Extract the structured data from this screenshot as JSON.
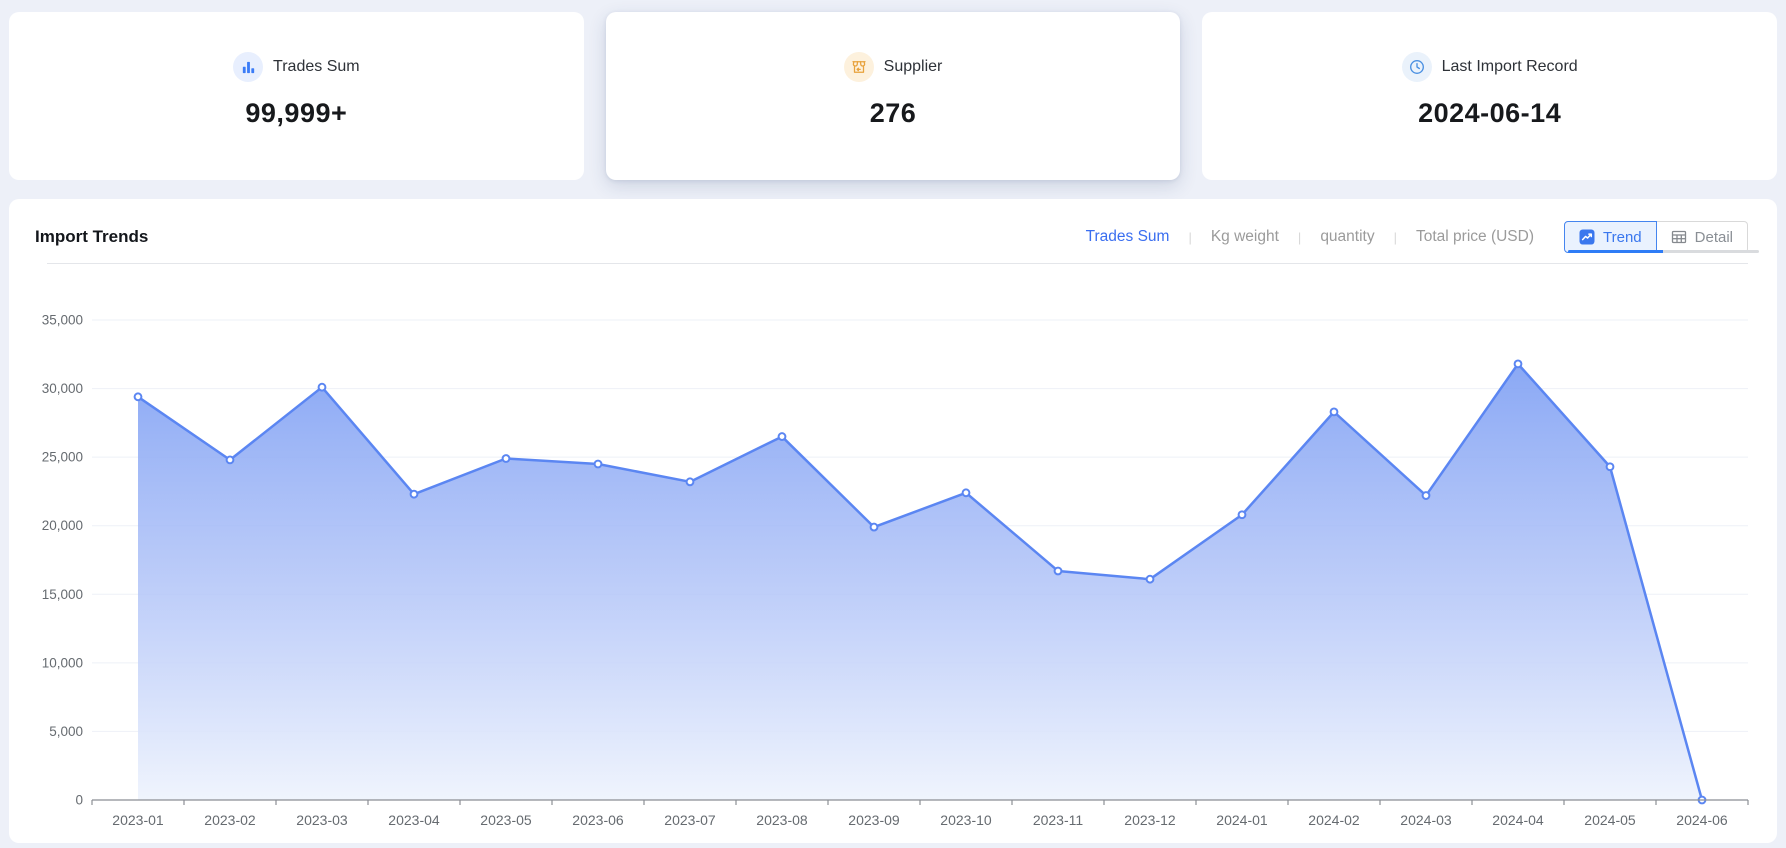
{
  "page": {
    "background": "#edf0f8"
  },
  "stats": [
    {
      "label": "Trades Sum",
      "value": "99,999+",
      "icon": "bar-chart-icon",
      "icon_color": "#3b7cf7",
      "icon_bg": "#e8effe"
    },
    {
      "label": "Supplier",
      "value": "276",
      "icon": "storefront-icon",
      "icon_color": "#e8a23d",
      "icon_bg": "#fdf1dd"
    },
    {
      "label": "Last Import Record",
      "value": "2024-06-14",
      "icon": "clock-icon",
      "icon_color": "#4a90e2",
      "icon_bg": "#eaf2fb"
    }
  ],
  "trends": {
    "title": "Import Trends",
    "metric_tabs": [
      {
        "label": "Trades Sum",
        "active": true
      },
      {
        "label": "Kg weight",
        "active": false
      },
      {
        "label": "quantity",
        "active": false
      },
      {
        "label": "Total price (USD)",
        "active": false
      }
    ],
    "view_toggle": {
      "trend_label": "Trend",
      "detail_label": "Detail",
      "active": "Trend"
    },
    "colors": {
      "tab_active": "#3a6ef0",
      "tab_inactive": "#9b9b9b",
      "button_active_border": "#4585ef",
      "button_active_bg": "#eaf2fe",
      "scrollbar_thumb": "#2e7cf6",
      "scrollbar_track": "#d9dbde"
    }
  },
  "chart_data": {
    "type": "area",
    "title": "Import Trends",
    "categories": [
      "2023-01",
      "2023-02",
      "2023-03",
      "2023-04",
      "2023-05",
      "2023-06",
      "2023-07",
      "2023-08",
      "2023-09",
      "2023-10",
      "2023-11",
      "2023-12",
      "2024-01",
      "2024-02",
      "2024-03",
      "2024-04",
      "2024-05",
      "2024-06"
    ],
    "series": [
      {
        "name": "Trades Sum",
        "values": [
          29400,
          24800,
          30100,
          22300,
          24900,
          24500,
          23200,
          26500,
          19900,
          22400,
          16700,
          16100,
          20800,
          28300,
          22200,
          31800,
          24300,
          0
        ]
      }
    ],
    "xlabel": "",
    "ylabel": "",
    "ylim": [
      0,
      35000
    ],
    "ytick_step": 5000,
    "grid": true,
    "legend_position": "none",
    "line_color": "#5b86f2",
    "point_fill": "#ffffff",
    "area_top_color": "#7c9ef3",
    "area_bottom_color": "#eef3fd",
    "gridline_color": "#eef1f7",
    "axis_color": "#8b8e94",
    "tick_label_color": "#666b70"
  }
}
